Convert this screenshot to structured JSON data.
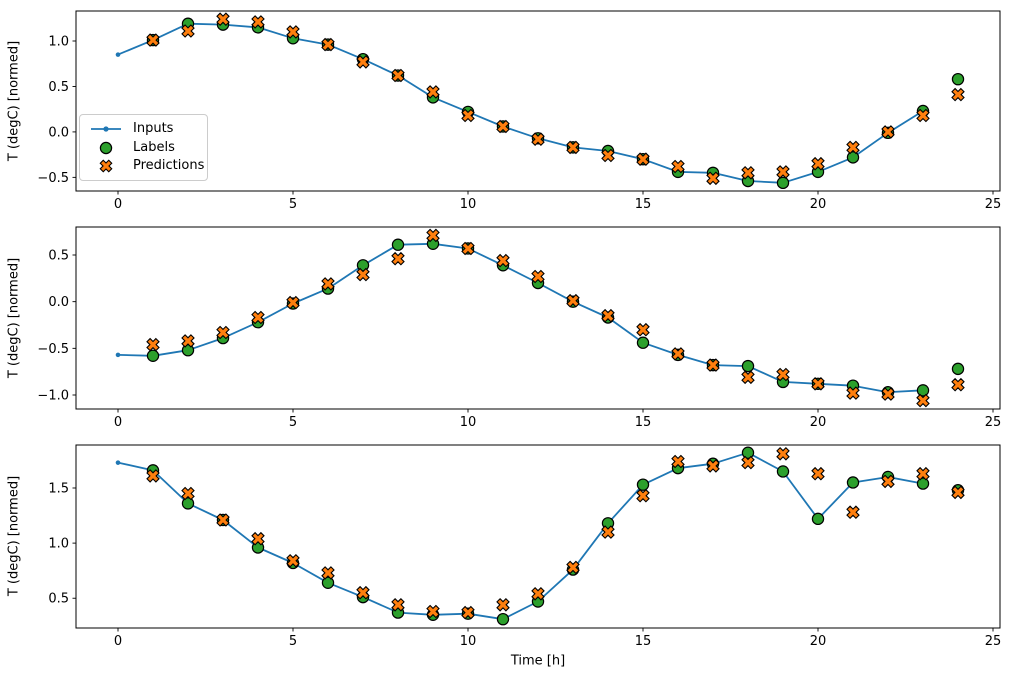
{
  "figure": {
    "xlabel": "Time [h]",
    "legend": [
      {
        "label": "Inputs",
        "marker": "line-dot",
        "color": "#1f77b4"
      },
      {
        "label": "Labels",
        "marker": "circle",
        "color": "#2ca02c",
        "edge": "#000000"
      },
      {
        "label": "Predictions",
        "marker": "x-cross",
        "color": "#ff7f0e",
        "edge": "#000000"
      }
    ]
  },
  "chart_data": [
    {
      "type": "line",
      "title": "",
      "ylabel": "T (degC) [normed]",
      "xlabel": "",
      "xlim": [
        -1.2,
        25.2
      ],
      "ylim": [
        -0.65,
        1.33
      ],
      "xticks": [
        0,
        5,
        10,
        15,
        20,
        25
      ],
      "yticks": [
        -0.5,
        0.0,
        0.5,
        1.0
      ],
      "grid": false,
      "legend_position": "center-left",
      "series": [
        {
          "name": "Inputs",
          "type": "line",
          "color": "#1f77b4",
          "x": [
            0,
            1,
            2,
            3,
            4,
            5,
            6,
            7,
            8,
            9,
            10,
            11,
            12,
            13,
            14,
            15,
            16,
            17,
            18,
            19,
            20,
            21,
            22,
            23
          ],
          "y": [
            0.85,
            1.01,
            1.19,
            1.18,
            1.15,
            1.03,
            0.96,
            0.8,
            0.62,
            0.38,
            0.22,
            0.06,
            -0.07,
            -0.17,
            -0.21,
            -0.3,
            -0.44,
            -0.45,
            -0.54,
            -0.56,
            -0.44,
            -0.28,
            -0.01,
            0.23
          ]
        },
        {
          "name": "Labels",
          "type": "scatter-circle",
          "color": "#2ca02c",
          "edge": "#000000",
          "x": [
            1,
            2,
            3,
            4,
            5,
            6,
            7,
            8,
            9,
            10,
            11,
            12,
            13,
            14,
            15,
            16,
            17,
            18,
            19,
            20,
            21,
            22,
            23,
            24
          ],
          "y": [
            1.01,
            1.19,
            1.18,
            1.15,
            1.03,
            0.96,
            0.8,
            0.62,
            0.38,
            0.22,
            0.06,
            -0.07,
            -0.17,
            -0.21,
            -0.3,
            -0.44,
            -0.45,
            -0.54,
            -0.56,
            -0.44,
            -0.28,
            -0.01,
            0.23,
            0.58
          ]
        },
        {
          "name": "Predictions",
          "type": "scatter-x",
          "color": "#ff7f0e",
          "edge": "#000000",
          "x": [
            1,
            2,
            3,
            4,
            5,
            6,
            7,
            8,
            9,
            10,
            11,
            12,
            13,
            14,
            15,
            16,
            17,
            18,
            19,
            20,
            21,
            22,
            23,
            24
          ],
          "y": [
            1.01,
            1.11,
            1.24,
            1.21,
            1.1,
            0.96,
            0.77,
            0.62,
            0.44,
            0.18,
            0.06,
            -0.08,
            -0.17,
            -0.26,
            -0.3,
            -0.38,
            -0.51,
            -0.45,
            -0.44,
            -0.35,
            -0.17,
            0.0,
            0.18,
            0.41
          ]
        }
      ]
    },
    {
      "type": "line",
      "title": "",
      "ylabel": "T (degC) [normed]",
      "xlabel": "",
      "xlim": [
        -1.2,
        25.2
      ],
      "ylim": [
        -1.15,
        0.8
      ],
      "xticks": [
        0,
        5,
        10,
        15,
        20,
        25
      ],
      "yticks": [
        -1.0,
        -0.5,
        0.0,
        0.5
      ],
      "grid": false,
      "series": [
        {
          "name": "Inputs",
          "type": "line",
          "color": "#1f77b4",
          "x": [
            0,
            1,
            2,
            3,
            4,
            5,
            6,
            7,
            8,
            9,
            10,
            11,
            12,
            13,
            14,
            15,
            16,
            17,
            18,
            19,
            20,
            21,
            22,
            23
          ],
          "y": [
            -0.57,
            -0.58,
            -0.52,
            -0.39,
            -0.22,
            -0.02,
            0.14,
            0.39,
            0.61,
            0.62,
            0.57,
            0.39,
            0.2,
            0.0,
            -0.17,
            -0.44,
            -0.57,
            -0.68,
            -0.69,
            -0.86,
            -0.88,
            -0.9,
            -0.97,
            -0.95
          ]
        },
        {
          "name": "Labels",
          "type": "scatter-circle",
          "color": "#2ca02c",
          "edge": "#000000",
          "x": [
            1,
            2,
            3,
            4,
            5,
            6,
            7,
            8,
            9,
            10,
            11,
            12,
            13,
            14,
            15,
            16,
            17,
            18,
            19,
            20,
            21,
            22,
            23,
            24
          ],
          "y": [
            -0.58,
            -0.52,
            -0.39,
            -0.22,
            -0.02,
            0.14,
            0.39,
            0.61,
            0.62,
            0.57,
            0.39,
            0.2,
            0.0,
            -0.17,
            -0.44,
            -0.57,
            -0.68,
            -0.69,
            -0.86,
            -0.88,
            -0.9,
            -0.97,
            -0.95,
            -0.72
          ]
        },
        {
          "name": "Predictions",
          "type": "scatter-x",
          "color": "#ff7f0e",
          "edge": "#000000",
          "x": [
            1,
            2,
            3,
            4,
            5,
            6,
            7,
            8,
            9,
            10,
            11,
            12,
            13,
            14,
            15,
            16,
            17,
            18,
            19,
            20,
            21,
            22,
            23,
            24
          ],
          "y": [
            -0.46,
            -0.42,
            -0.33,
            -0.17,
            -0.01,
            0.19,
            0.29,
            0.46,
            0.71,
            0.57,
            0.44,
            0.27,
            0.01,
            -0.15,
            -0.3,
            -0.56,
            -0.68,
            -0.81,
            -0.78,
            -0.88,
            -0.98,
            -0.99,
            -1.06,
            -0.89
          ]
        }
      ]
    },
    {
      "type": "line",
      "title": "",
      "ylabel": "T (degC) [normed]",
      "xlabel": "Time [h]",
      "xlim": [
        -1.2,
        25.2
      ],
      "ylim": [
        0.23,
        1.89
      ],
      "xticks": [
        0,
        5,
        10,
        15,
        20,
        25
      ],
      "yticks": [
        0.5,
        1.0,
        1.5
      ],
      "grid": false,
      "series": [
        {
          "name": "Inputs",
          "type": "line",
          "color": "#1f77b4",
          "x": [
            0,
            1,
            2,
            3,
            4,
            5,
            6,
            7,
            8,
            9,
            10,
            11,
            12,
            13,
            14,
            15,
            16,
            17,
            18,
            19,
            20,
            21,
            22,
            23
          ],
          "y": [
            1.73,
            1.66,
            1.36,
            1.21,
            0.96,
            0.82,
            0.64,
            0.51,
            0.37,
            0.35,
            0.36,
            0.31,
            0.47,
            0.76,
            1.18,
            1.53,
            1.68,
            1.72,
            1.82,
            1.65,
            1.22,
            1.55,
            1.6,
            1.54
          ]
        },
        {
          "name": "Labels",
          "type": "scatter-circle",
          "color": "#2ca02c",
          "edge": "#000000",
          "x": [
            1,
            2,
            3,
            4,
            5,
            6,
            7,
            8,
            9,
            10,
            11,
            12,
            13,
            14,
            15,
            16,
            17,
            18,
            19,
            20,
            21,
            22,
            23,
            24
          ],
          "y": [
            1.66,
            1.36,
            1.21,
            0.96,
            0.82,
            0.64,
            0.51,
            0.37,
            0.35,
            0.36,
            0.31,
            0.47,
            0.76,
            1.18,
            1.53,
            1.68,
            1.72,
            1.82,
            1.65,
            1.22,
            1.55,
            1.6,
            1.54,
            1.48
          ]
        },
        {
          "name": "Predictions",
          "type": "scatter-x",
          "color": "#ff7f0e",
          "edge": "#000000",
          "x": [
            1,
            2,
            3,
            4,
            5,
            6,
            7,
            8,
            9,
            10,
            11,
            12,
            13,
            14,
            15,
            16,
            17,
            18,
            19,
            20,
            21,
            22,
            23,
            24
          ],
          "y": [
            1.61,
            1.45,
            1.21,
            1.04,
            0.84,
            0.73,
            0.55,
            0.44,
            0.38,
            0.37,
            0.44,
            0.54,
            0.78,
            1.1,
            1.43,
            1.74,
            1.7,
            1.73,
            1.81,
            1.63,
            1.28,
            1.56,
            1.63,
            1.46
          ]
        }
      ]
    }
  ]
}
